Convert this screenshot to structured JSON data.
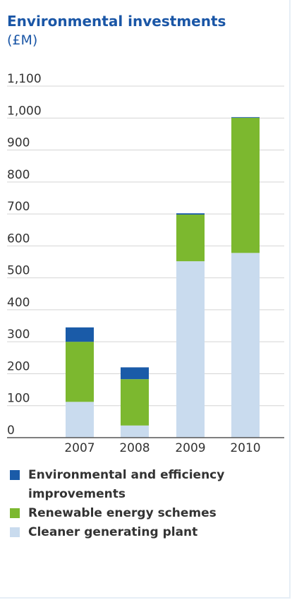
{
  "chart_data": {
    "type": "bar",
    "stacked": true,
    "title": "Environmental investments",
    "subtitle": "(£M)",
    "xlabel": "",
    "ylabel": "",
    "categories": [
      "2007",
      "2008",
      "2009",
      "2010"
    ],
    "ylim": [
      0,
      1100
    ],
    "yticks": [
      "0",
      "100",
      "200",
      "300",
      "400",
      "500",
      "600",
      "700",
      "800",
      "900",
      "1,000",
      "1,100"
    ],
    "grid": true,
    "legend_position": "bottom",
    "series": [
      {
        "name": "Cleaner generating plant",
        "color": "#c9dbee",
        "values": [
          112,
          38,
          552,
          578
        ]
      },
      {
        "name": "Renewable energy schemes",
        "color": "#7cb82f",
        "values": [
          188,
          145,
          146,
          423
        ]
      },
      {
        "name": "Environmental and efficiency improvements",
        "color": "#1a5ba8",
        "values": [
          45,
          37,
          4,
          2
        ]
      }
    ],
    "legend": [
      {
        "label_line1": "Environmental and efficiency",
        "label_line2": "improvements",
        "color": "#1a5ba8"
      },
      {
        "label_line1": "Renewable energy schemes",
        "label_line2": "",
        "color": "#7cb82f"
      },
      {
        "label_line1": "Cleaner generating plant",
        "label_line2": "",
        "color": "#c9dbee"
      }
    ]
  }
}
